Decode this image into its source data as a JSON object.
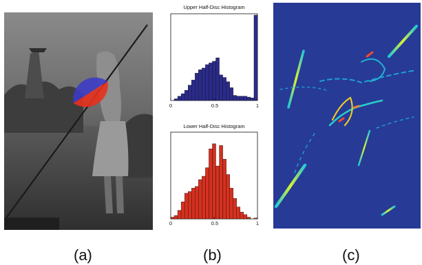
{
  "figure": {
    "captions": [
      "(a)",
      "(b)",
      "(c)"
    ]
  },
  "panel_b": {
    "upper_title": "Upper Half-Disc Histogram",
    "lower_title": "Lower Half-Disc Histogram",
    "tick_labels": [
      "0",
      "0.5",
      "1"
    ]
  },
  "colors": {
    "upper_bar": "#2b2b8c",
    "lower_bar": "#d7301f",
    "disc_upper": "#3b3bc8",
    "disc_lower": "#e8301c",
    "edge_map_bg": "#273a96"
  },
  "chart_data": [
    {
      "type": "bar",
      "title": "Upper Half-Disc Histogram",
      "x_range": [
        0,
        1
      ],
      "xticks": [
        0,
        0.5,
        1
      ],
      "bins": 25,
      "values": [
        0,
        0.02,
        0.05,
        0.08,
        0.12,
        0.18,
        0.24,
        0.32,
        0.36,
        0.38,
        0.42,
        0.44,
        0.46,
        0.5,
        0.3,
        0.27,
        0.22,
        0.15,
        0.06,
        0.05,
        0.05,
        0.05,
        0.04,
        0.03,
        1.0
      ]
    },
    {
      "type": "bar",
      "title": "Lower Half-Disc Histogram",
      "x_range": [
        0,
        1
      ],
      "xticks": [
        0,
        0.5,
        1
      ],
      "bins": 25,
      "values": [
        0.02,
        0.04,
        0.1,
        0.2,
        0.3,
        0.32,
        0.36,
        0.38,
        0.46,
        0.5,
        0.6,
        0.82,
        0.88,
        0.62,
        0.86,
        0.7,
        0.52,
        0.36,
        0.24,
        0.14,
        0.08,
        0.05,
        0.02,
        0.0,
        0.01
      ]
    }
  ]
}
